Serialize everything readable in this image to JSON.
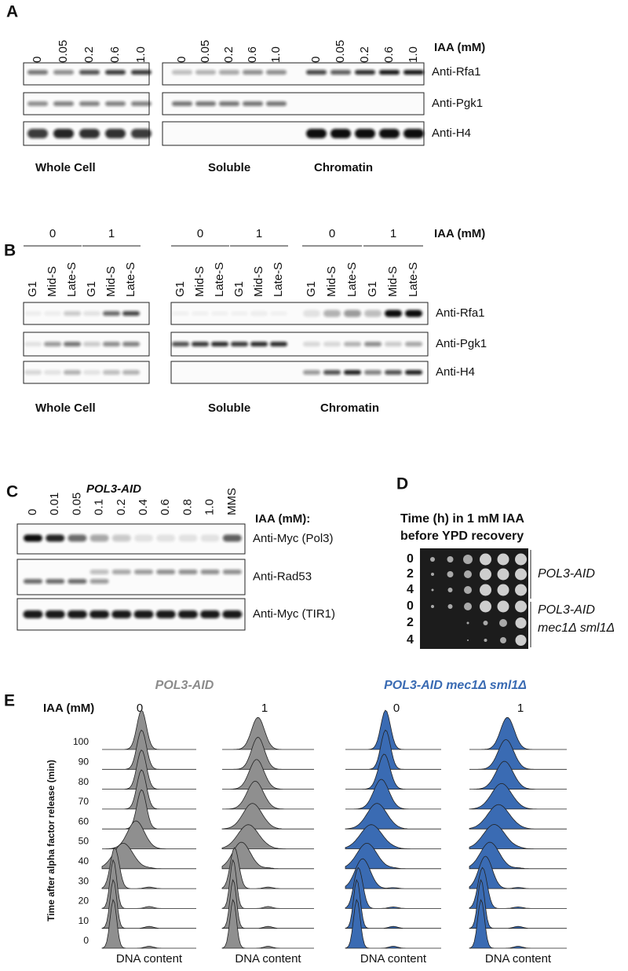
{
  "panel_a": {
    "label": "A",
    "iaa_label": "IAA (mM)",
    "groups": [
      {
        "name": "Whole Cell",
        "lanes": [
          "0",
          "0.05",
          "0.2",
          "0.6",
          "1.0"
        ]
      },
      {
        "name": "Soluble",
        "lanes": [
          "0",
          "0.05",
          "0.2",
          "0.6",
          "1.0"
        ]
      },
      {
        "name": "Chromatin",
        "lanes": [
          "0",
          "0.05",
          "0.2",
          "0.6",
          "1.0"
        ]
      }
    ],
    "blots": [
      "Anti-Rfa1",
      "Anti-Pgk1",
      "Anti-H4"
    ]
  },
  "panel_b": {
    "label": "B",
    "iaa_label": "IAA (mM)",
    "groups": [
      {
        "name": "Whole Cell",
        "conditions": [
          "0",
          "1"
        ],
        "lanes": [
          "G1",
          "Mid-S",
          "Late-S",
          "G1",
          "Mid-S",
          "Late-S"
        ]
      },
      {
        "name": "Soluble",
        "conditions": [
          "0",
          "1"
        ],
        "lanes": [
          "G1",
          "Mid-S",
          "Late-S",
          "G1",
          "Mid-S",
          "Late-S"
        ]
      },
      {
        "name": "Chromatin",
        "conditions": [
          "0",
          "1"
        ],
        "lanes": [
          "G1",
          "Mid-S",
          "Late-S",
          "G1",
          "Mid-S",
          "Late-S"
        ]
      }
    ],
    "blots": [
      "Anti-Rfa1",
      "Anti-Pgk1",
      "Anti-H4"
    ]
  },
  "panel_c": {
    "label": "C",
    "title": "POL3-AID",
    "iaa_label": "IAA (mM):",
    "lanes": [
      "0",
      "0.01",
      "0.05",
      "0.1",
      "0.2",
      "0.4",
      "0.6",
      "0.8",
      "1.0",
      "MMS"
    ],
    "blots": [
      "Anti-Myc (Pol3)",
      "Anti-Rad53",
      "Anti-Myc (TIR1)"
    ]
  },
  "panel_d": {
    "label": "D",
    "title": [
      "Time (h) in 1 mM IAA",
      "before YPD recovery"
    ],
    "rows": [
      "0",
      "2",
      "4",
      "0",
      "2",
      "4"
    ],
    "strains": [
      [
        "POL3-AID"
      ],
      [
        "POL3-AID",
        "mec1Δ sml1Δ"
      ]
    ]
  },
  "panel_e": {
    "label": "E",
    "iaa_label": "IAA (mM)",
    "strains": [
      {
        "name": "POL3-AID",
        "conditions": [
          "0",
          "1"
        ]
      },
      {
        "name": "POL3-AID mec1Δ sml1Δ",
        "conditions": [
          "0",
          "1"
        ]
      }
    ],
    "y_label": "Time after alpha factor release (min)",
    "time_ticks": [
      100,
      90,
      80,
      70,
      60,
      50,
      40,
      30,
      20,
      10,
      0
    ],
    "x_labels": [
      "DNA content",
      "DNA content",
      "DNA content",
      "DNA content"
    ]
  }
}
